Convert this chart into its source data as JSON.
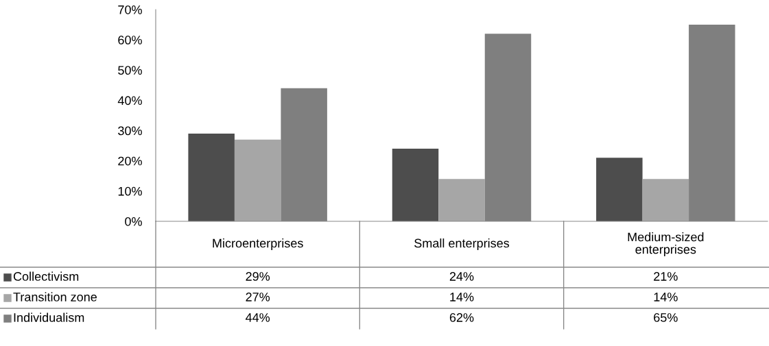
{
  "chart_data": {
    "type": "bar",
    "categories": [
      "Microenterprises",
      "Small enterprises",
      "Medium-sized\nenterprises"
    ],
    "series": [
      {
        "name": "Collectivism",
        "color": "#4d4d4d",
        "values": [
          29,
          24,
          21
        ],
        "value_labels": [
          "29%",
          "24%",
          "21%"
        ]
      },
      {
        "name": "Transition zone",
        "color": "#a6a6a6",
        "values": [
          27,
          14,
          14
        ],
        "value_labels": [
          "27%",
          "14%",
          "14%"
        ]
      },
      {
        "name": "Individualism",
        "color": "#7f7f7f",
        "values": [
          44,
          62,
          65
        ],
        "value_labels": [
          "44%",
          "62%",
          "65%"
        ]
      }
    ],
    "ylim": [
      0,
      70
    ],
    "yticks": [
      {
        "value": 0,
        "label": "0%"
      },
      {
        "value": 10,
        "label": "10%"
      },
      {
        "value": 20,
        "label": "20%"
      },
      {
        "value": 30,
        "label": "30%"
      },
      {
        "value": 40,
        "label": "40%"
      },
      {
        "value": 50,
        "label": "50%"
      },
      {
        "value": 60,
        "label": "60%"
      },
      {
        "value": 70,
        "label": "70%"
      }
    ],
    "grid": false,
    "legend": "bottom"
  }
}
